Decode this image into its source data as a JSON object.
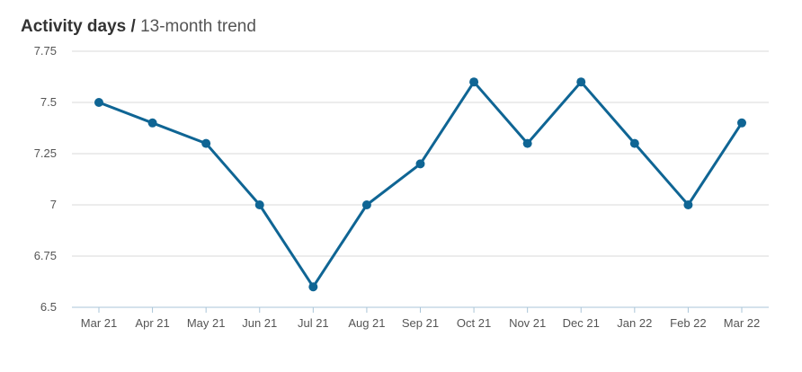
{
  "header": {
    "title_bold": "Activity days",
    "separator": "/",
    "title_rest": "13-month trend"
  },
  "chart_data": {
    "type": "line",
    "title": "Activity days / 13-month trend",
    "xlabel": "",
    "ylabel": "",
    "categories": [
      "Mar 21",
      "Apr 21",
      "May 21",
      "Jun 21",
      "Jul 21",
      "Aug 21",
      "Sep 21",
      "Oct 21",
      "Nov 21",
      "Dec 21",
      "Jan 22",
      "Feb 22",
      "Mar 22"
    ],
    "series": [
      {
        "values": [
          7.5,
          7.4,
          7.3,
          7.0,
          6.6,
          7.0,
          7.2,
          7.6,
          7.3,
          7.6,
          7.3,
          7.0,
          7.4
        ]
      }
    ],
    "ylim": [
      6.5,
      7.75
    ],
    "yticks": [
      6.5,
      6.75,
      7,
      7.25,
      7.5,
      7.75
    ],
    "ytick_labels": [
      "6.5",
      "6.75",
      "7",
      "7.25",
      "7.5",
      "7.75"
    ],
    "grid": true,
    "legend": "none",
    "colors": {
      "line": "#0f6594",
      "grid": "#d9d9d9",
      "axis": "#aac5d8"
    }
  }
}
